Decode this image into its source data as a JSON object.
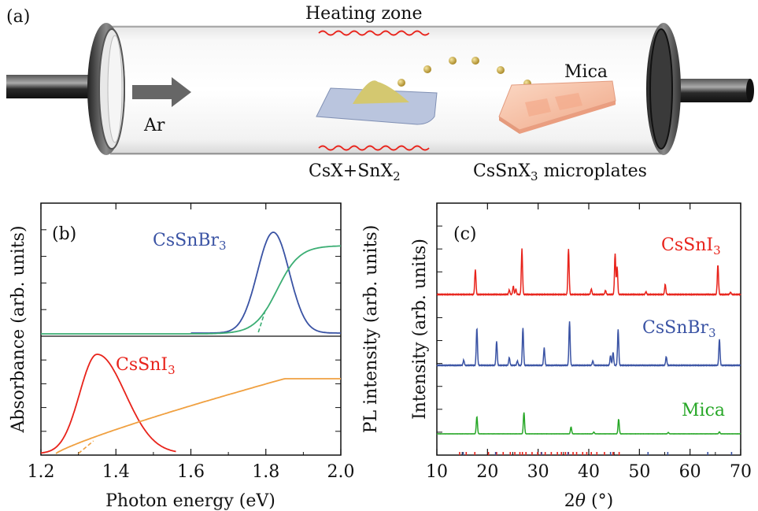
{
  "panel_a": {
    "label": "(a)",
    "heating_zone": "Heating zone",
    "gas": "Ar",
    "source_pre": "CsX+SnX",
    "source_sub": "2",
    "product_pre": "CsSnX",
    "product_sub": "3",
    "product_post": " microplates",
    "substrate": "Mica"
  },
  "chart_data": [
    {
      "type": "line",
      "panel": "(b)",
      "xlabel": "Photon energy (eV)",
      "ylabel": "Absorbance (arb. units)",
      "y2label": "PL intensity (arb. units)",
      "xlim": [
        1.2,
        2.0
      ],
      "xticks": [
        "1.2",
        "1.4",
        "1.6",
        "1.8",
        "2.0"
      ],
      "subplots": [
        {
          "name": "CsSnBr3",
          "label_main": "CsSnBr",
          "label_sub": "3",
          "pl_color": "#3a53a4",
          "abs_color": "#3cae74",
          "pl": {
            "center": 1.82,
            "fwhm": 0.1
          },
          "absorbance_edge": 1.78,
          "absorbance_plateau_start": 1.9
        },
        {
          "name": "CsSnI3",
          "label_main": "CsSnI",
          "label_sub": "3",
          "pl_color": "#e8231b",
          "abs_color": "#f0a040",
          "pl": {
            "center": 1.35,
            "fwhm": 0.11
          },
          "absorbance_edge": 1.3,
          "absorbance_plateau_start": 1.85
        }
      ]
    },
    {
      "type": "line",
      "panel": "(c)",
      "xlabel_pre": "2",
      "xlabel_sym": "θ",
      "xlabel_post": " (°)",
      "ylabel": "Intensity (arb. units)",
      "xlim": [
        10,
        70
      ],
      "xticks": [
        "10",
        "20",
        "30",
        "40",
        "50",
        "60",
        "70"
      ],
      "series": [
        {
          "name": "CsSnI3",
          "label_main": "CsSnI",
          "label_sub": "3",
          "color": "#e8231b",
          "peaks": [
            [
              17.6,
              0.55
            ],
            [
              24.3,
              0.1
            ],
            [
              25.1,
              0.18
            ],
            [
              25.6,
              0.12
            ],
            [
              26.8,
              1.0
            ],
            [
              36.0,
              1.0
            ],
            [
              40.5,
              0.12
            ],
            [
              43.3,
              0.09
            ],
            [
              45.2,
              0.9
            ],
            [
              45.6,
              0.6
            ],
            [
              51.3,
              0.06
            ],
            [
              55.1,
              0.22
            ],
            [
              65.5,
              0.65
            ],
            [
              68.0,
              0.05
            ]
          ]
        },
        {
          "name": "CsSnBr3",
          "label_main": "CsSnBr",
          "label_sub": "3",
          "color": "#3a53a4",
          "peaks": [
            [
              15.3,
              0.12
            ],
            [
              17.9,
              0.85
            ],
            [
              21.8,
              0.55
            ],
            [
              24.3,
              0.18
            ],
            [
              25.9,
              0.1
            ],
            [
              27.0,
              0.85
            ],
            [
              31.2,
              0.4
            ],
            [
              36.2,
              1.0
            ],
            [
              40.8,
              0.1
            ],
            [
              44.3,
              0.22
            ],
            [
              44.8,
              0.3
            ],
            [
              45.8,
              0.82
            ],
            [
              55.3,
              0.2
            ],
            [
              65.8,
              0.6
            ]
          ]
        },
        {
          "name": "Mica",
          "label_main": "Mica",
          "label_sub": "",
          "color": "#27a727",
          "peaks": [
            [
              17.9,
              0.5
            ],
            [
              27.2,
              0.62
            ],
            [
              36.5,
              0.2
            ],
            [
              41.0,
              0.05
            ],
            [
              45.9,
              0.42
            ],
            [
              55.7,
              0.04
            ],
            [
              65.8,
              0.06
            ]
          ]
        }
      ],
      "reference_ticks_red": [
        14.5,
        15.8,
        17.5,
        20.2,
        21.8,
        23.1,
        24.5,
        25.4,
        26.4,
        26.9,
        27.6,
        28.8,
        29.9,
        30.6,
        31.4,
        32.6,
        33.8,
        34.6,
        35.4,
        36.0,
        36.9,
        37.6,
        38.8,
        39.6,
        40.5,
        41.6,
        43.1,
        44.8,
        46.0
      ],
      "reference_ticks_blue": [
        15.2,
        21.6,
        30.7,
        35.9,
        44.3,
        51.7,
        55.6,
        63.5,
        68.2
      ]
    }
  ]
}
